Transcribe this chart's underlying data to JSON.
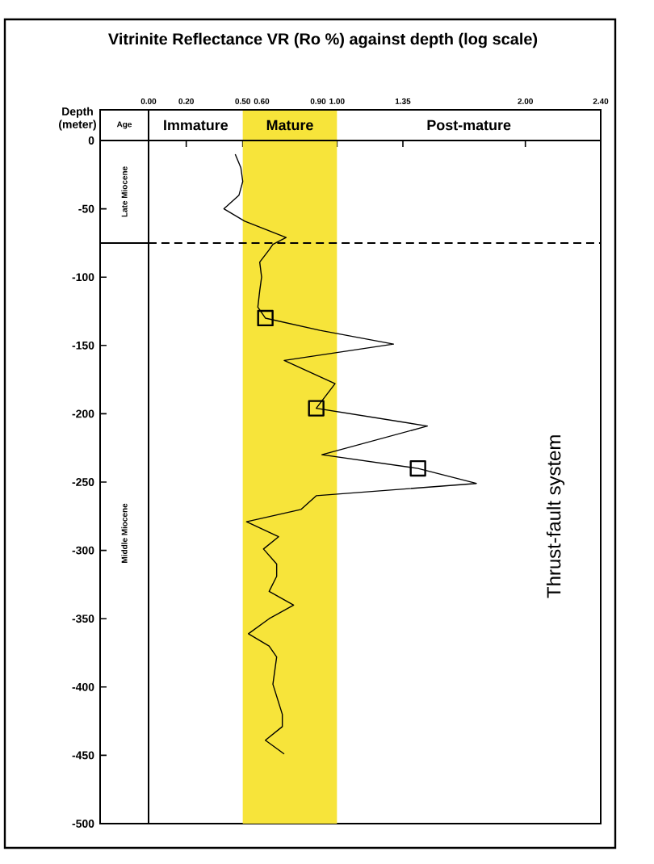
{
  "chart_data": {
    "type": "line",
    "title": "Vitrinite Reflectance VR (Ro %) against depth (log scale)",
    "ylabel": "Depth (meter)",
    "xlim": [
      0,
      2.4
    ],
    "xticks": [
      {
        "value": 0,
        "label": "0.00"
      },
      {
        "value": 0.2,
        "label": "0.20"
      },
      {
        "value": 0.5,
        "label": "0.50"
      },
      {
        "value": 0.6,
        "label": "0.60"
      },
      {
        "value": 0.9,
        "label": "0.90"
      },
      {
        "value": 1.0,
        "label": "1.00"
      },
      {
        "value": 1.35,
        "label": "1.35"
      },
      {
        "value": 2.0,
        "label": "2.00"
      },
      {
        "value": 2.4,
        "label": "2.40"
      }
    ],
    "ylim": [
      -500,
      0
    ],
    "yticks": [
      0,
      -50,
      -100,
      -150,
      -200,
      -250,
      -300,
      -350,
      -400,
      -450,
      -500
    ],
    "series": [
      {
        "type": "line",
        "color": "#000000",
        "marker": "none",
        "x": [
          0.46,
          0.49,
          0.5,
          0.48,
          0.4,
          0.51,
          0.73,
          0.66,
          0.64,
          0.59,
          0.6,
          0.59,
          0.58,
          0.62,
          0.91,
          1.3,
          0.72,
          0.99,
          0.89,
          1.48,
          0.92,
          1.43,
          1.74,
          0.89,
          0.81,
          0.52,
          0.69,
          0.61,
          0.68,
          0.68,
          0.64,
          0.77,
          0.64,
          0.53,
          0.64,
          0.68,
          0.66,
          0.71,
          0.71,
          0.62,
          0.72
        ],
        "values": [
          -10,
          -20,
          -30,
          -40,
          -50,
          -59,
          -71,
          -76,
          -80,
          -89,
          -100,
          -110,
          -122,
          -130,
          -139,
          -149,
          -161,
          -178,
          -196,
          -209,
          -230,
          -240,
          -251,
          -260,
          -270,
          -279,
          -290,
          -299,
          -310,
          -319,
          -330,
          -340,
          -350,
          -361,
          -370,
          -378,
          -398,
          -420,
          -429,
          -439,
          -449
        ]
      },
      {
        "type": "scatter",
        "color": "#000000",
        "marker": "square",
        "x": [
          0.62,
          0.89,
          1.43
        ],
        "values": [
          -130,
          -196,
          -240
        ]
      }
    ],
    "bands": [
      {
        "axis": "x",
        "from": 0.5,
        "to": 1.0,
        "color": "#f7e43a"
      }
    ],
    "ref_lines": [
      {
        "axis": "y",
        "value": -75,
        "line_style": "dashed"
      }
    ],
    "annotations": [
      "Age",
      "Late Miocene",
      "Middle Miocene",
      "Immature",
      "Mature",
      "Post-mature",
      "Thrust-fault system"
    ]
  }
}
